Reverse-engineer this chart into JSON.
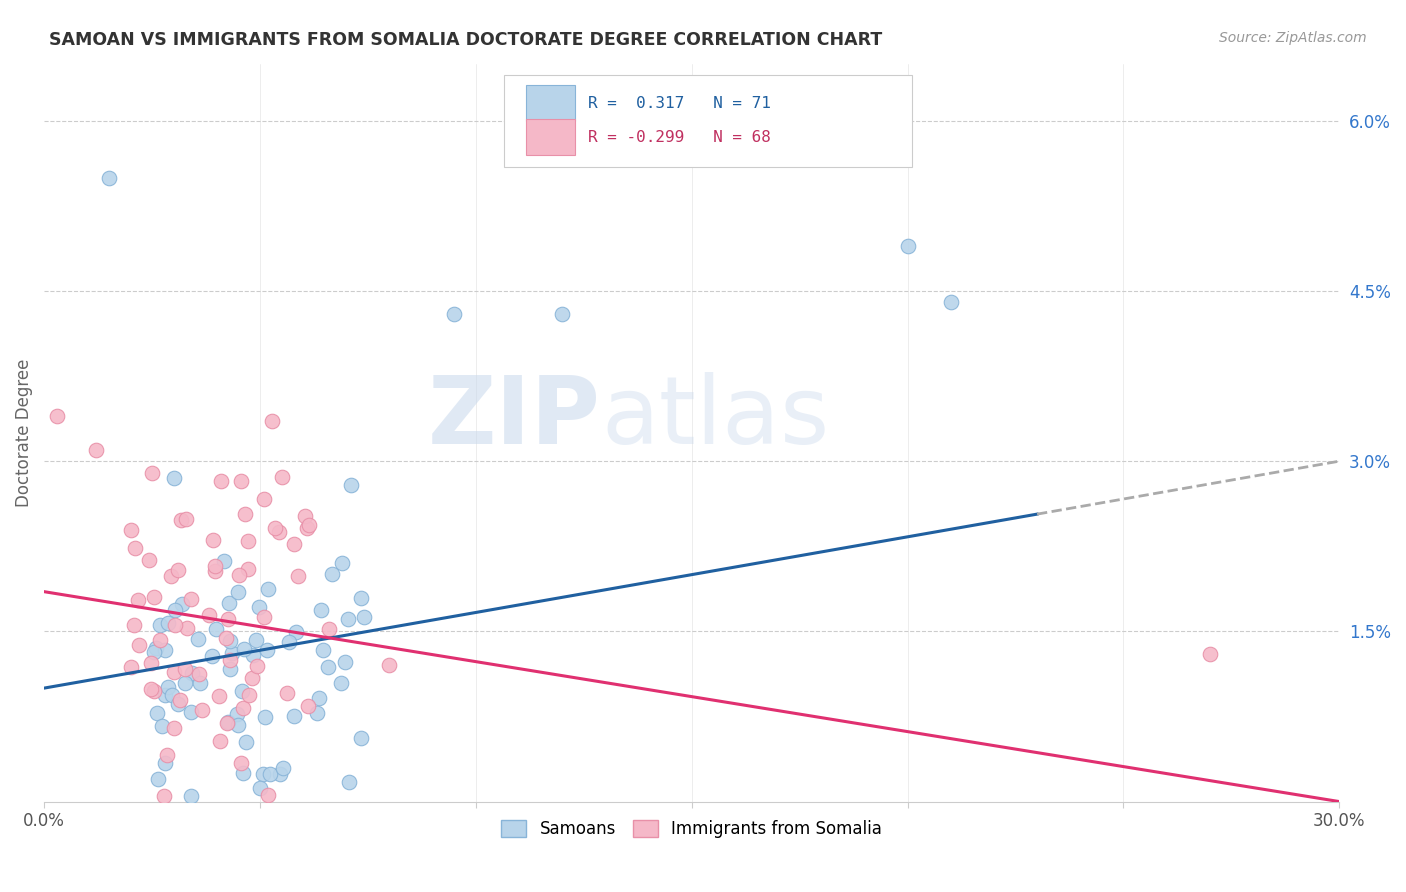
{
  "title": "SAMOAN VS IMMIGRANTS FROM SOMALIA DOCTORATE DEGREE CORRELATION CHART",
  "source": "Source: ZipAtlas.com",
  "ylabel": "Doctorate Degree",
  "xlim": [
    0.0,
    30.0
  ],
  "ylim": [
    0.0,
    6.5
  ],
  "ytick_vals": [
    0.0,
    1.5,
    3.0,
    4.5,
    6.0
  ],
  "ytick_labels": [
    "",
    "1.5%",
    "3.0%",
    "4.5%",
    "6.0%"
  ],
  "xtick_vals": [
    0,
    5,
    10,
    15,
    20,
    25,
    30
  ],
  "xtick_labels": [
    "0.0%",
    "",
    "",
    "",
    "",
    "",
    "30.0%"
  ],
  "blue_scatter_color": "#b8d4ea",
  "blue_scatter_edge": "#88b4d8",
  "pink_scatter_color": "#f5b8c8",
  "pink_scatter_edge": "#e890a8",
  "blue_line_color": "#2060a0",
  "pink_line_color": "#e03070",
  "dash_line_color": "#aaaaaa",
  "blue_line_x0": 0.0,
  "blue_line_y0": 1.0,
  "blue_line_x1": 30.0,
  "blue_line_y1": 3.0,
  "blue_solid_x1": 23.0,
  "pink_line_x0": 0.0,
  "pink_line_y0": 1.85,
  "pink_line_x1": 30.0,
  "pink_line_y1": 0.0,
  "watermark_zip": "ZIP",
  "watermark_atlas": "atlas",
  "grid_color": "#cccccc",
  "title_color": "#333333",
  "source_color": "#999999",
  "ytick_color": "#3377cc",
  "xtick_color": "#555555"
}
